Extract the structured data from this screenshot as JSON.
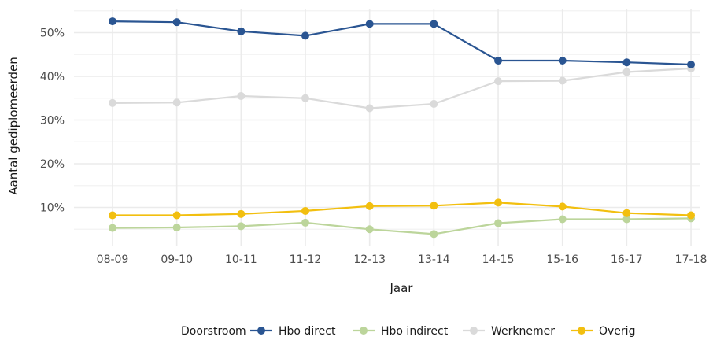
{
  "chart_data": {
    "type": "line",
    "xlabel": "Jaar",
    "ylabel": "Aantal gediplomeerden",
    "categories": [
      "08-09",
      "09-10",
      "10-11",
      "11-12",
      "12-13",
      "13-14",
      "14-15",
      "15-16",
      "16-17",
      "17-18"
    ],
    "y_ticks": [
      10,
      20,
      30,
      40,
      50
    ],
    "y_tick_labels": [
      "10%",
      "20%",
      "30%",
      "40%",
      "50%"
    ],
    "ylim": [
      0,
      55
    ],
    "grid": true,
    "legend": {
      "title": "Doorstroom",
      "position": "bottom"
    },
    "series": [
      {
        "name": "Hbo direct",
        "color": "#2a5592",
        "values": [
          52.6,
          52.4,
          50.3,
          49.3,
          52.0,
          52.0,
          43.6,
          43.6,
          43.2,
          42.7
        ]
      },
      {
        "name": "Hbo indirect",
        "color": "#bcd59b",
        "values": [
          5.3,
          5.4,
          5.7,
          6.5,
          5.0,
          3.9,
          6.4,
          7.3,
          7.3,
          7.5
        ]
      },
      {
        "name": "Werknemer",
        "color": "#dadada",
        "values": [
          33.9,
          34.0,
          35.5,
          35.0,
          32.7,
          33.7,
          38.9,
          39.0,
          41.0,
          41.8
        ]
      },
      {
        "name": "Overig",
        "color": "#f2bf0f",
        "values": [
          8.2,
          8.2,
          8.5,
          9.2,
          10.3,
          10.4,
          11.1,
          10.2,
          8.7,
          8.2
        ]
      }
    ]
  }
}
